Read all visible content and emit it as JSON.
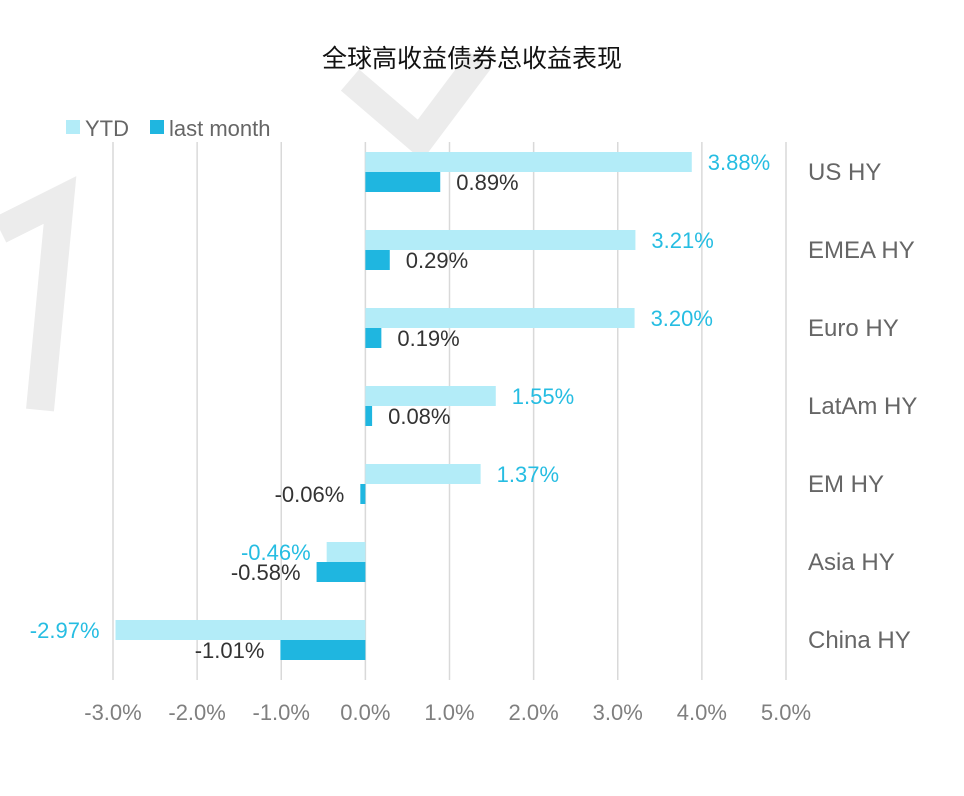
{
  "chart_data": {
    "type": "bar",
    "orientation": "horizontal",
    "title": "全球高收益债券总收益表现",
    "categories": [
      "US HY",
      "EMEA HY",
      "Euro HY",
      "LatAm HY",
      "EM HY",
      "Asia HY",
      "China HY"
    ],
    "series": [
      {
        "name": "YTD",
        "values": [
          3.88,
          3.21,
          3.2,
          1.55,
          1.37,
          -0.46,
          -2.97
        ],
        "labels": [
          "3.88%",
          "3.21%",
          "3.20%",
          "1.55%",
          "1.37%",
          "-0.46%",
          "-2.97%"
        ],
        "color": "#b3ecf8",
        "label_color": "#26bde2"
      },
      {
        "name": "last month",
        "values": [
          0.89,
          0.29,
          0.19,
          0.08,
          -0.06,
          -0.58,
          -1.01
        ],
        "labels": [
          "0.89%",
          "0.29%",
          "0.19%",
          "0.08%",
          "-0.06%",
          "-0.58%",
          "-1.01%"
        ],
        "color": "#1fb6e0",
        "label_color": "#333333"
      }
    ],
    "xlim": [
      -3.0,
      5.0
    ],
    "xticks": [
      -3,
      -2,
      -1,
      0,
      1,
      2,
      3,
      4,
      5
    ],
    "xtick_labels": [
      "-3.0%",
      "-2.0%",
      "-1.0%",
      "0.0%",
      "1.0%",
      "2.0%",
      "3.0%",
      "4.0%",
      "5.0%"
    ],
    "grid": "vertical",
    "legend_position": "top-left",
    "category_labels_position": "right"
  }
}
